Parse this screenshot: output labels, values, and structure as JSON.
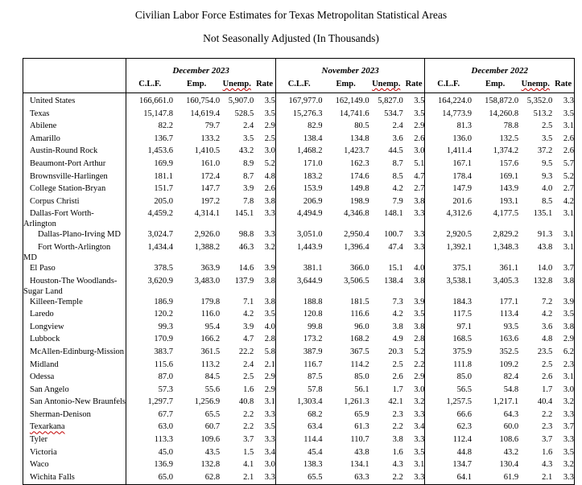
{
  "page": {
    "title": "Civilian Labor Force Estimates for Texas Metropolitan Statistical Areas",
    "subtitle": "Not Seasonally Adjusted (In Thousands)"
  },
  "table": {
    "corner_label": "",
    "colors": {
      "misspelling_underline": "#c00000",
      "border": "#000000",
      "text": "#000000"
    },
    "groups": [
      {
        "label": "December 2023"
      },
      {
        "label": "November 2023"
      },
      {
        "label": "December 2022"
      }
    ],
    "sub_headers": [
      {
        "label": "C.L.F.",
        "misspelled": false
      },
      {
        "label": "Emp.",
        "misspelled": false
      },
      {
        "label": "Unemp.",
        "misspelled": true
      },
      {
        "label": "Rate",
        "misspelled": false
      }
    ],
    "rows": [
      {
        "area": "United States",
        "indent": 0,
        "values": [
          "166,661.0",
          "160,754.0",
          "5,907.0",
          "3.5",
          "167,977.0",
          "162,149.0",
          "5,827.0",
          "3.5",
          "164,224.0",
          "158,872.0",
          "5,352.0",
          "3.3"
        ]
      },
      {
        "area": "Texas",
        "indent": 0,
        "values": [
          "15,147.8",
          "14,619.4",
          "528.5",
          "3.5",
          "15,276.3",
          "14,741.6",
          "534.7",
          "3.5",
          "14,773.9",
          "14,260.8",
          "513.2",
          "3.5"
        ]
      },
      {
        "area": "Abilene",
        "indent": 0,
        "values": [
          "82.2",
          "79.7",
          "2.4",
          "2.9",
          "82.9",
          "80.5",
          "2.4",
          "2.9",
          "81.3",
          "78.8",
          "2.5",
          "3.1"
        ]
      },
      {
        "area": "Amarillo",
        "indent": 0,
        "values": [
          "136.7",
          "133.2",
          "3.5",
          "2.5",
          "138.4",
          "134.8",
          "3.6",
          "2.6",
          "136.0",
          "132.5",
          "3.5",
          "2.6"
        ]
      },
      {
        "area": "Austin-Round Rock",
        "indent": 0,
        "values": [
          "1,453.6",
          "1,410.5",
          "43.2",
          "3.0",
          "1,468.2",
          "1,423.7",
          "44.5",
          "3.0",
          "1,411.4",
          "1,374.2",
          "37.2",
          "2.6"
        ]
      },
      {
        "area": "Beaumont-Port Arthur",
        "indent": 0,
        "values": [
          "169.9",
          "161.0",
          "8.9",
          "5.2",
          "171.0",
          "162.3",
          "8.7",
          "5.1",
          "167.1",
          "157.6",
          "9.5",
          "5.7"
        ]
      },
      {
        "area": "Brownsville-Harlingen",
        "indent": 0,
        "values": [
          "181.1",
          "172.4",
          "8.7",
          "4.8",
          "183.2",
          "174.6",
          "8.5",
          "4.7",
          "178.4",
          "169.1",
          "9.3",
          "5.2"
        ]
      },
      {
        "area": "College Station-Bryan",
        "indent": 0,
        "values": [
          "151.7",
          "147.7",
          "3.9",
          "2.6",
          "153.9",
          "149.8",
          "4.2",
          "2.7",
          "147.9",
          "143.9",
          "4.0",
          "2.7"
        ]
      },
      {
        "area": "Corpus Christi",
        "indent": 0,
        "values": [
          "205.0",
          "197.2",
          "7.8",
          "3.8",
          "206.9",
          "198.9",
          "7.9",
          "3.8",
          "201.6",
          "193.1",
          "8.5",
          "4.2"
        ]
      },
      {
        "area": "Dallas-Fort Worth-Arlington",
        "indent": 0,
        "values": [
          "4,459.2",
          "4,314.1",
          "145.1",
          "3.3",
          "4,494.9",
          "4,346.8",
          "148.1",
          "3.3",
          "4,312.6",
          "4,177.5",
          "135.1",
          "3.1"
        ]
      },
      {
        "area": "Dallas-Plano-Irving MD",
        "indent": 1,
        "values": [
          "3,024.7",
          "2,926.0",
          "98.8",
          "3.3",
          "3,051.0",
          "2,950.4",
          "100.7",
          "3.3",
          "2,920.5",
          "2,829.2",
          "91.3",
          "3.1"
        ]
      },
      {
        "area": "Fort Worth-Arlington MD",
        "indent": 1,
        "values": [
          "1,434.4",
          "1,388.2",
          "46.3",
          "3.2",
          "1,443.9",
          "1,396.4",
          "47.4",
          "3.3",
          "1,392.1",
          "1,348.3",
          "43.8",
          "3.1"
        ]
      },
      {
        "area": "El Paso",
        "indent": 0,
        "values": [
          "378.5",
          "363.9",
          "14.6",
          "3.9",
          "381.1",
          "366.0",
          "15.1",
          "4.0",
          "375.1",
          "361.1",
          "14.0",
          "3.7"
        ]
      },
      {
        "area": "Houston-The Woodlands-",
        "area_line2": "Sugar Land",
        "indent": 0,
        "values": [
          "3,620.9",
          "3,483.0",
          "137.9",
          "3.8",
          "3,644.9",
          "3,506.5",
          "138.4",
          "3.8",
          "3,538.1",
          "3,405.3",
          "132.8",
          "3.8"
        ]
      },
      {
        "area": "Killeen-Temple",
        "indent": 0,
        "values": [
          "186.9",
          "179.8",
          "7.1",
          "3.8",
          "188.8",
          "181.5",
          "7.3",
          "3.9",
          "184.3",
          "177.1",
          "7.2",
          "3.9"
        ]
      },
      {
        "area": "Laredo",
        "indent": 0,
        "values": [
          "120.2",
          "116.0",
          "4.2",
          "3.5",
          "120.8",
          "116.6",
          "4.2",
          "3.5",
          "117.5",
          "113.4",
          "4.2",
          "3.5"
        ]
      },
      {
        "area": "Longview",
        "indent": 0,
        "values": [
          "99.3",
          "95.4",
          "3.9",
          "4.0",
          "99.8",
          "96.0",
          "3.8",
          "3.8",
          "97.1",
          "93.5",
          "3.6",
          "3.8"
        ]
      },
      {
        "area": "Lubbock",
        "indent": 0,
        "values": [
          "170.9",
          "166.2",
          "4.7",
          "2.8",
          "173.2",
          "168.2",
          "4.9",
          "2.8",
          "168.5",
          "163.6",
          "4.8",
          "2.9"
        ]
      },
      {
        "area": "McAllen-Edinburg-Mission",
        "indent": 0,
        "values": [
          "383.7",
          "361.5",
          "22.2",
          "5.8",
          "387.9",
          "367.5",
          "20.3",
          "5.2",
          "375.9",
          "352.5",
          "23.5",
          "6.2"
        ]
      },
      {
        "area": "Midland",
        "indent": 0,
        "values": [
          "115.6",
          "113.2",
          "2.4",
          "2.1",
          "116.7",
          "114.2",
          "2.5",
          "2.2",
          "111.8",
          "109.2",
          "2.5",
          "2.3"
        ]
      },
      {
        "area": "Odessa",
        "indent": 0,
        "values": [
          "87.0",
          "84.5",
          "2.5",
          "2.9",
          "87.5",
          "85.0",
          "2.6",
          "2.9",
          "85.0",
          "82.4",
          "2.6",
          "3.1"
        ]
      },
      {
        "area": "San Angelo",
        "indent": 0,
        "values": [
          "57.3",
          "55.6",
          "1.6",
          "2.9",
          "57.8",
          "56.1",
          "1.7",
          "3.0",
          "56.5",
          "54.8",
          "1.7",
          "3.0"
        ]
      },
      {
        "area": "San Antonio-New Braunfels",
        "indent": 0,
        "values": [
          "1,297.7",
          "1,256.9",
          "40.8",
          "3.1",
          "1,303.4",
          "1,261.3",
          "42.1",
          "3.2",
          "1,257.5",
          "1,217.1",
          "40.4",
          "3.2"
        ]
      },
      {
        "area": "Sherman-Denison",
        "indent": 0,
        "values": [
          "67.7",
          "65.5",
          "2.2",
          "3.3",
          "68.2",
          "65.9",
          "2.3",
          "3.3",
          "66.6",
          "64.3",
          "2.2",
          "3.3"
        ]
      },
      {
        "area": "Texarkana",
        "indent": 0,
        "misspelled": true,
        "values": [
          "63.0",
          "60.7",
          "2.2",
          "3.5",
          "63.4",
          "61.3",
          "2.2",
          "3.4",
          "62.3",
          "60.0",
          "2.3",
          "3.7"
        ]
      },
      {
        "area": "Tyler",
        "indent": 0,
        "values": [
          "113.3",
          "109.6",
          "3.7",
          "3.3",
          "114.4",
          "110.7",
          "3.8",
          "3.3",
          "112.4",
          "108.6",
          "3.7",
          "3.3"
        ]
      },
      {
        "area": "Victoria",
        "indent": 0,
        "values": [
          "45.0",
          "43.5",
          "1.5",
          "3.4",
          "45.4",
          "43.8",
          "1.6",
          "3.5",
          "44.8",
          "43.2",
          "1.6",
          "3.5"
        ]
      },
      {
        "area": "Waco",
        "indent": 0,
        "values": [
          "136.9",
          "132.8",
          "4.1",
          "3.0",
          "138.3",
          "134.1",
          "4.3",
          "3.1",
          "134.7",
          "130.4",
          "4.3",
          "3.2"
        ]
      },
      {
        "area": "Wichita Falls",
        "indent": 0,
        "values": [
          "65.0",
          "62.8",
          "2.1",
          "3.3",
          "65.5",
          "63.3",
          "2.2",
          "3.3",
          "64.1",
          "61.9",
          "2.1",
          "3.3"
        ]
      }
    ]
  }
}
